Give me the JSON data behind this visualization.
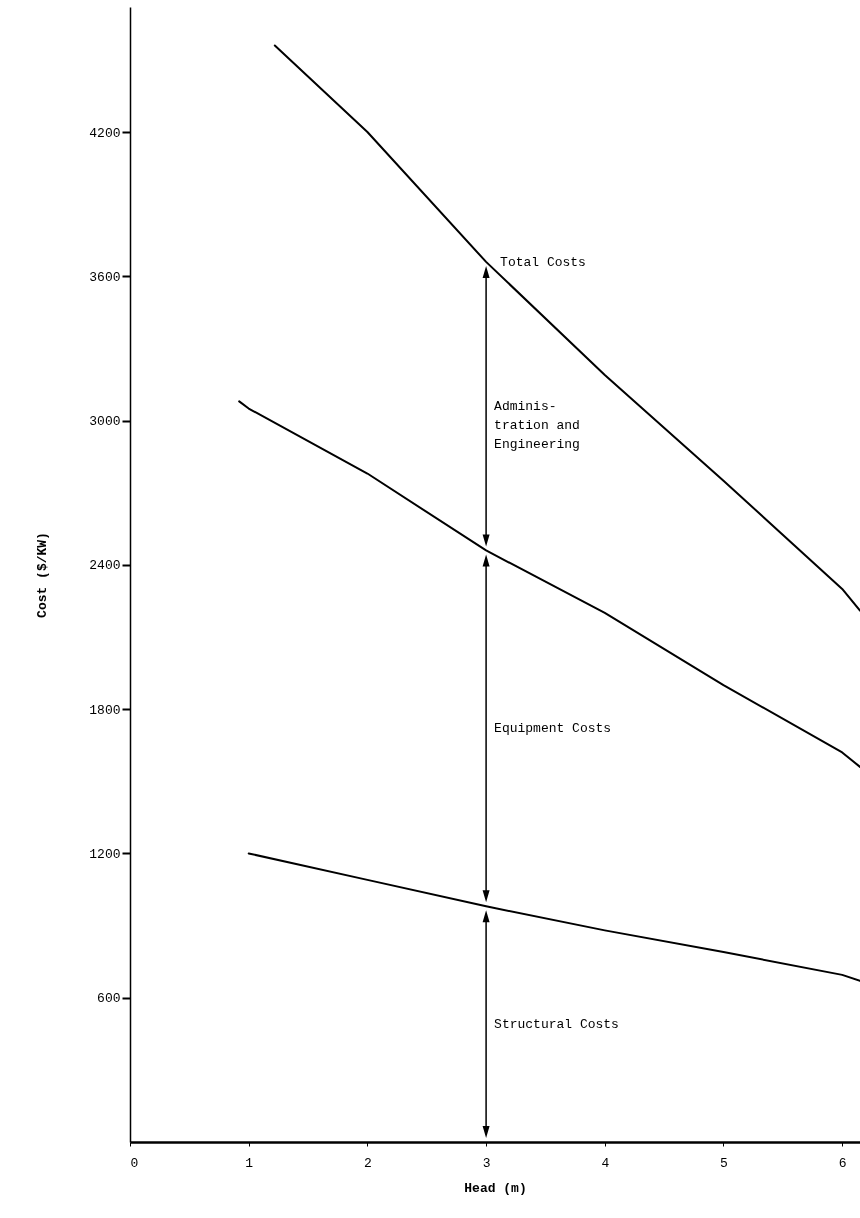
{
  "chart_data": {
    "type": "line",
    "xlabel": "Head (m)",
    "ylabel": "Cost ($/KW)",
    "xlim": [
      0,
      6.15
    ],
    "ylim": [
      0,
      4720
    ],
    "xticks": [
      0,
      1,
      2,
      3,
      4,
      5,
      6
    ],
    "yticks": [
      600,
      1200,
      1800,
      2400,
      3000,
      3600,
      4200
    ],
    "line_style": "solid",
    "series": [
      {
        "color": "#000000",
        "x": [
          1,
          2,
          3,
          4,
          5,
          6,
          6.15
        ],
        "values": [
          1200,
          1090,
          980,
          880,
          790,
          695,
          670
        ]
      },
      {
        "color": "#000000",
        "x": [
          0.92,
          1,
          2,
          3,
          4,
          5,
          6,
          6.15
        ],
        "values": [
          3080,
          3050,
          2780,
          2460,
          2200,
          1900,
          1620,
          1560
        ]
      },
      {
        "color": "#000000",
        "x": [
          1.22,
          2,
          3,
          4,
          5,
          6,
          6.15
        ],
        "values": [
          4560,
          4200,
          3660,
          3190,
          2750,
          2300,
          2210
        ]
      }
    ],
    "annotations": [
      {
        "text": "Total Costs",
        "x": 3,
        "y": 3660
      },
      "Adminis-\ntration and\nEngineering",
      "Equipment Costs",
      "Structural Costs"
    ]
  }
}
